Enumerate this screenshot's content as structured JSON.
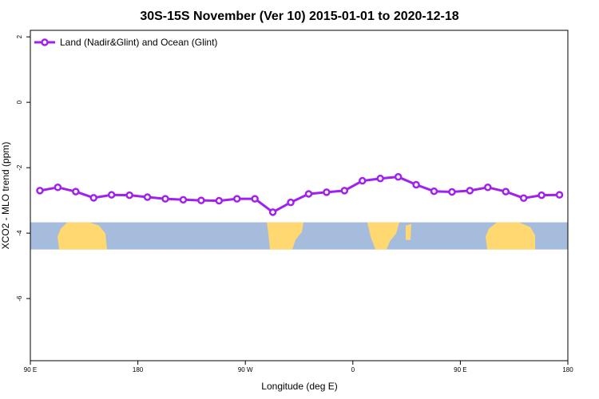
{
  "chart_data": {
    "type": "line",
    "title": "30S-15S November (Ver 10)   2015-01-01 to 2020-12-18",
    "xlabel": "Longitude (deg E)",
    "ylabel": "XCO2 - MLO trend (ppm)",
    "xlim": [
      90,
      540
    ],
    "ylim": [
      -7.9,
      2.2
    ],
    "x_ticks": [
      {
        "value": 90,
        "label": "90 E"
      },
      {
        "value": 180,
        "label": "180"
      },
      {
        "value": 270,
        "label": "90 W"
      },
      {
        "value": 360,
        "label": "0"
      },
      {
        "value": 450,
        "label": "90 E"
      },
      {
        "value": 540,
        "label": "180"
      }
    ],
    "y_ticks": [
      {
        "value": 2,
        "label": "2"
      },
      {
        "value": 0,
        "label": "0"
      },
      {
        "value": -2,
        "label": "-2"
      },
      {
        "value": -4,
        "label": "-4"
      },
      {
        "value": -6,
        "label": "-6"
      }
    ],
    "series": [
      {
        "name": "Land (Nadir&Glint) and Ocean (Glint)",
        "color": "#a020f0",
        "x": [
          98,
          113,
          128,
          143,
          158,
          173,
          188,
          203,
          218,
          233,
          248,
          263,
          278,
          293,
          308,
          323,
          338,
          353,
          368,
          383,
          398,
          413,
          428,
          443,
          458,
          473,
          488,
          503,
          518,
          533
        ],
        "y": [
          -2.7,
          -2.6,
          -2.73,
          -2.92,
          -2.83,
          -2.84,
          -2.9,
          -2.95,
          -2.98,
          -3.0,
          -3.01,
          -2.95,
          -2.95,
          -3.36,
          -3.06,
          -2.8,
          -2.75,
          -2.7,
          -2.4,
          -2.33,
          -2.28,
          -2.52,
          -2.72,
          -2.74,
          -2.7,
          -2.6,
          -2.73,
          -2.93,
          -2.84,
          -2.83
        ]
      }
    ],
    "legend": {
      "position": "top-left"
    },
    "background_map": {
      "ocean_color": "#a5bcdc",
      "land_color": "#ffd872",
      "y_range": [
        -4.5,
        -3.67
      ]
    }
  }
}
